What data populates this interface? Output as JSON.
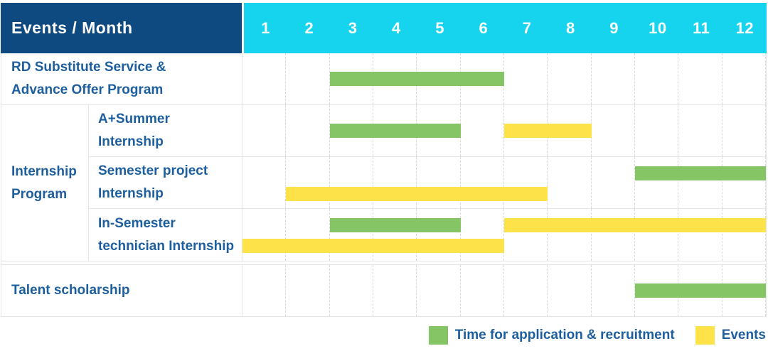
{
  "header": {
    "title": "Events / Month",
    "months": [
      "1",
      "2",
      "3",
      "4",
      "5",
      "6",
      "7",
      "8",
      "9",
      "10",
      "11",
      "12"
    ]
  },
  "colors": {
    "header_bg": "#0e4a80",
    "months_bg": "#16d3ee",
    "recruitment": "#85c566",
    "event": "#fde24a",
    "label_text": "#1d5f9e"
  },
  "sections": [
    {
      "id": "rd-substitute",
      "label_lines": [
        "RD Substitute Service &",
        "Advance Offer Program"
      ],
      "height": 73,
      "bars": [
        {
          "type": "recruitment",
          "start": 3,
          "end": 6,
          "line": "center"
        }
      ]
    },
    {
      "id": "internship-program",
      "label_lines": [
        "Internship",
        "Program"
      ],
      "rows": [
        {
          "id": "a-plus-summer",
          "label_lines": [
            "A+Summer",
            "Internship"
          ],
          "bars": [
            {
              "type": "recruitment",
              "start": 3,
              "end": 5,
              "line": "center"
            },
            {
              "type": "event",
              "start": 7,
              "end": 8,
              "line": "center"
            }
          ]
        },
        {
          "id": "semester-project",
          "label_lines": [
            "Semester project",
            "Internship"
          ],
          "bars": [
            {
              "type": "recruitment",
              "start": 10,
              "end": 12,
              "line": "top"
            },
            {
              "type": "event",
              "start": 2,
              "end": 7,
              "line": "bottom"
            }
          ]
        },
        {
          "id": "in-semester-technician",
          "label_lines": [
            "In-Semester",
            "technician Internship"
          ],
          "bars": [
            {
              "type": "recruitment",
              "start": 3,
              "end": 5,
              "line": "top"
            },
            {
              "type": "event",
              "start": 7,
              "end": 12,
              "line": "top"
            },
            {
              "type": "event",
              "start": 1,
              "end": 6,
              "line": "bottom"
            }
          ]
        }
      ]
    },
    {
      "id": "talent-scholarship",
      "separator_before": true,
      "label_lines": [
        "Talent scholarship"
      ],
      "height": 72,
      "bars": [
        {
          "type": "recruitment",
          "start": 10,
          "end": 12,
          "line": "center"
        }
      ]
    }
  ],
  "legend": [
    {
      "type": "recruitment",
      "label": "Time for application & recruitment",
      "color": "#85c566"
    },
    {
      "type": "event",
      "label": "Events",
      "color": "#fde24a"
    }
  ],
  "chart_data": {
    "type": "bar",
    "subtype": "gantt",
    "title": "Events / Month",
    "x_axis": {
      "label": "Month",
      "ticks": [
        1,
        2,
        3,
        4,
        5,
        6,
        7,
        8,
        9,
        10,
        11,
        12
      ],
      "range": [
        1,
        12
      ]
    },
    "grid": true,
    "legend_position": "bottom-right",
    "rows": [
      {
        "group": null,
        "label": "RD Substitute Service & Advance Offer Program",
        "spans": [
          {
            "series": "Time for application & recruitment",
            "start_month": 3,
            "end_month": 6
          }
        ]
      },
      {
        "group": "Internship Program",
        "label": "A+Summer Internship",
        "spans": [
          {
            "series": "Time for application & recruitment",
            "start_month": 3,
            "end_month": 5
          },
          {
            "series": "Events",
            "start_month": 7,
            "end_month": 8
          }
        ]
      },
      {
        "group": "Internship Program",
        "label": "Semester project Internship",
        "spans": [
          {
            "series": "Time for application & recruitment",
            "start_month": 10,
            "end_month": 12
          },
          {
            "series": "Events",
            "start_month": 2,
            "end_month": 7
          }
        ]
      },
      {
        "group": "Internship Program",
        "label": "In-Semester technician Internship",
        "spans": [
          {
            "series": "Time for application & recruitment",
            "start_month": 3,
            "end_month": 5
          },
          {
            "series": "Events",
            "start_month": 7,
            "end_month": 12
          },
          {
            "series": "Events",
            "start_month": 1,
            "end_month": 6
          }
        ]
      },
      {
        "group": null,
        "label": "Talent scholarship",
        "spans": [
          {
            "series": "Time for application & recruitment",
            "start_month": 10,
            "end_month": 12
          }
        ]
      }
    ],
    "legend": [
      {
        "label": "Time for application & recruitment",
        "color": "#85c566"
      },
      {
        "label": "Events",
        "color": "#fde24a"
      }
    ]
  }
}
